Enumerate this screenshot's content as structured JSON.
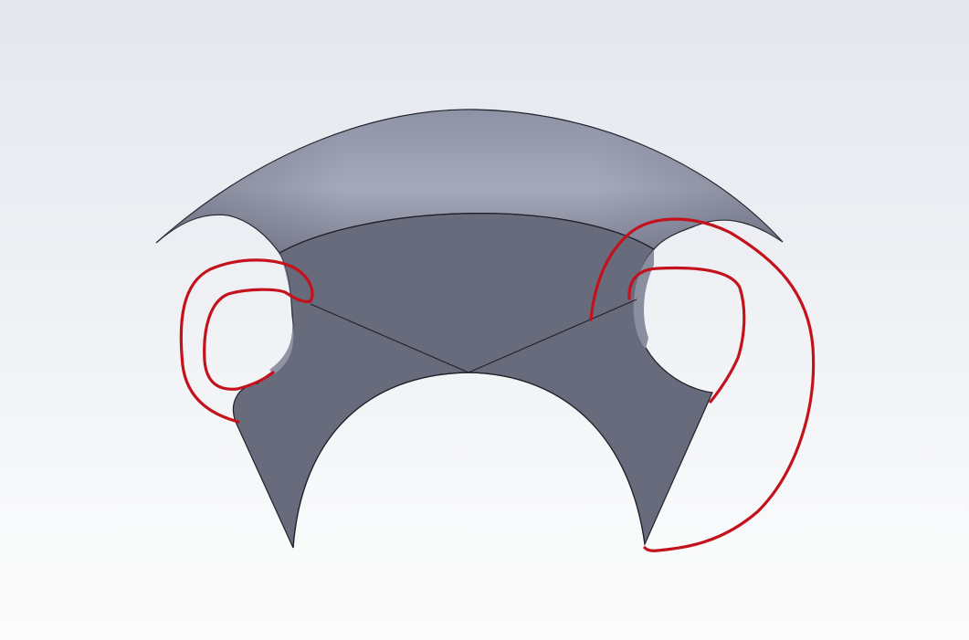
{
  "viewport": {
    "background_top": "#e4e7ee",
    "background_bottom": "#fbfbfb"
  },
  "model": {
    "top_face_light": "#a3a7b8",
    "top_face_dark": "#6d7183",
    "front_face": "#686c7d",
    "edge": "#1f2128"
  },
  "markup": {
    "stroke": "#c4121c"
  }
}
